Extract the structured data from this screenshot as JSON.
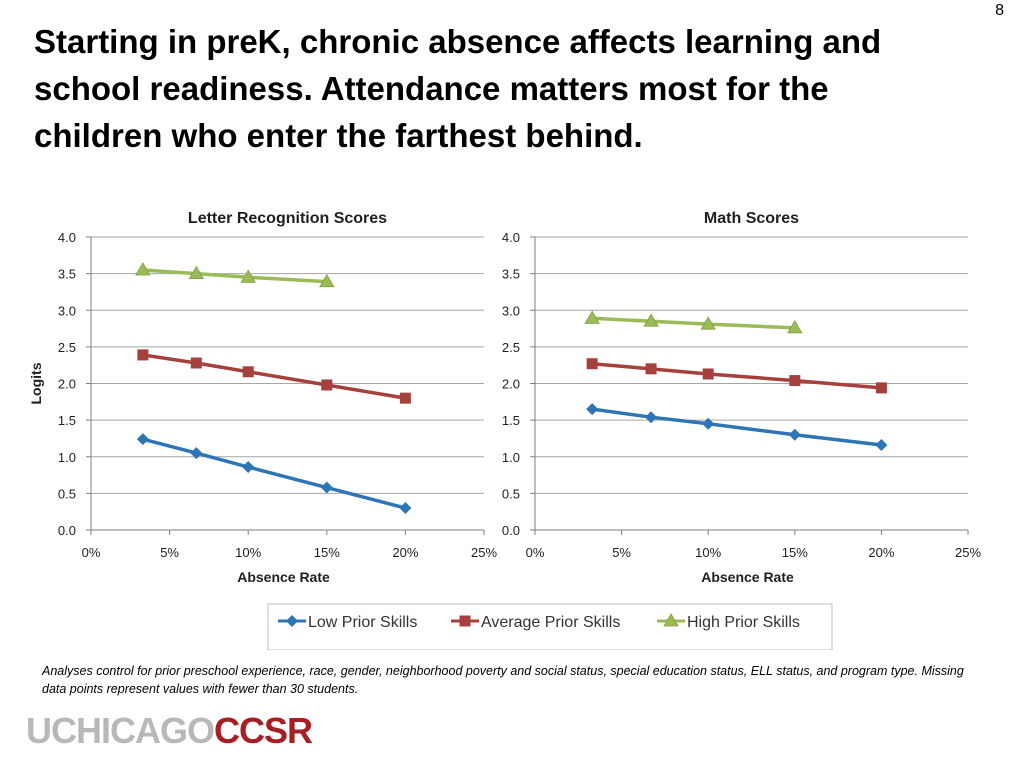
{
  "slide": {
    "number": "8",
    "title": "Starting in preK, chronic absence affects learning and school readiness.  Attendance matters most for the children who enter the farthest behind.",
    "footnote": "Analyses control for prior preschool experience, race, gender, neighborhood poverty and social status,  special education status, ELL status, and program type. Missing data points represent values with fewer than 30 students.",
    "logo_part1": "UCHICAGO",
    "logo_part2": "CCSR"
  },
  "legend": {
    "placement": "bottom-center",
    "entries": [
      "Low Prior Skills",
      "Average Prior Skills",
      "High Prior Skills"
    ]
  },
  "colors": {
    "low": "#2e75b6",
    "average": "#a5403c",
    "high": "#9bbb59",
    "grid": "#a6a6a6"
  },
  "chart_data": [
    {
      "type": "line",
      "title": "Letter Recognition Scores",
      "xlabel": "Absence Rate",
      "ylabel": "Logits",
      "xlim": [
        0,
        25
      ],
      "ylim": [
        0,
        4
      ],
      "xticks": [
        "0%",
        "5%",
        "10%",
        "15%",
        "20%",
        "25%"
      ],
      "yticks": [
        "0.0",
        "0.5",
        "1.0",
        "1.5",
        "2.0",
        "2.5",
        "3.0",
        "3.5",
        "4.0"
      ],
      "grid": true,
      "series": [
        {
          "name": "Low Prior Skills",
          "marker": "diamond",
          "x": [
            3.3,
            6.7,
            10,
            15,
            20
          ],
          "y": [
            1.24,
            1.05,
            0.86,
            0.58,
            0.3
          ]
        },
        {
          "name": "Average Prior Skills",
          "marker": "square",
          "x": [
            3.3,
            6.7,
            10,
            15,
            20
          ],
          "y": [
            2.39,
            2.28,
            2.16,
            1.98,
            1.8
          ]
        },
        {
          "name": "High Prior Skills",
          "marker": "triangle",
          "x": [
            3.3,
            6.7,
            10,
            15
          ],
          "y": [
            3.55,
            3.5,
            3.45,
            3.39
          ]
        }
      ]
    },
    {
      "type": "line",
      "title": "Math Scores",
      "xlabel": "Absence Rate",
      "ylabel": "",
      "xlim": [
        0,
        25
      ],
      "ylim": [
        0,
        4
      ],
      "xticks": [
        "0%",
        "5%",
        "10%",
        "15%",
        "20%",
        "25%"
      ],
      "yticks": [
        "0.0",
        "0.5",
        "1.0",
        "1.5",
        "2.0",
        "2.5",
        "3.0",
        "3.5",
        "4.0"
      ],
      "grid": true,
      "series": [
        {
          "name": "Low Prior Skills",
          "marker": "diamond",
          "x": [
            3.3,
            6.7,
            10,
            15,
            20
          ],
          "y": [
            1.65,
            1.54,
            1.45,
            1.3,
            1.16
          ]
        },
        {
          "name": "Average Prior Skills",
          "marker": "square",
          "x": [
            3.3,
            6.7,
            10,
            15,
            20
          ],
          "y": [
            2.27,
            2.2,
            2.13,
            2.04,
            1.94
          ]
        },
        {
          "name": "High Prior Skills",
          "marker": "triangle",
          "x": [
            3.3,
            6.7,
            10,
            15
          ],
          "y": [
            2.89,
            2.85,
            2.81,
            2.76
          ]
        }
      ]
    }
  ]
}
